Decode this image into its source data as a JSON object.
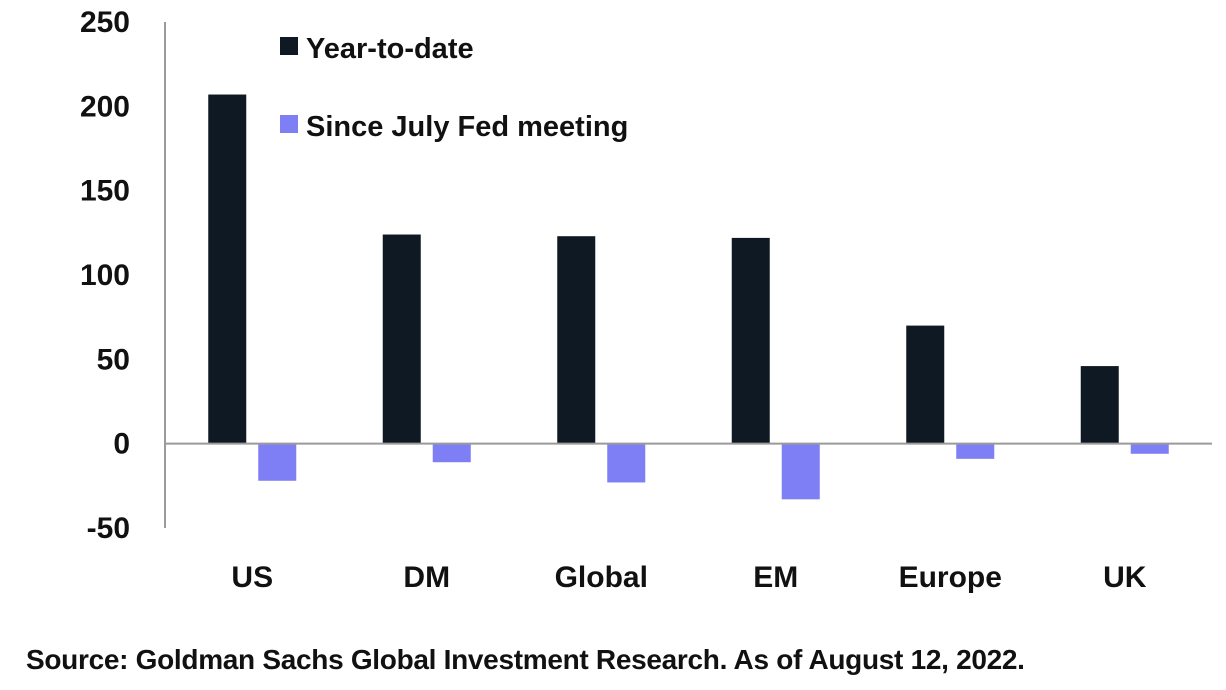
{
  "chart_data": {
    "type": "bar",
    "categories": [
      "US",
      "DM",
      "Global",
      "EM",
      "Europe",
      "UK"
    ],
    "series": [
      {
        "name": "Year-to-date",
        "color": "#0f1923",
        "values": [
          207,
          124,
          123,
          122,
          70,
          46
        ]
      },
      {
        "name": "Since July Fed meeting",
        "color": "#7f7ff5",
        "values": [
          -22,
          -11,
          -23,
          -33,
          -9,
          -6
        ]
      }
    ],
    "title": "",
    "xlabel": "",
    "ylabel": "",
    "ylim": [
      -50,
      250
    ],
    "yticks": [
      250,
      200,
      150,
      100,
      50,
      0,
      -50
    ],
    "grid": false,
    "legend": "top-left"
  },
  "source": "Source: Goldman Sachs Global Investment Research. As of August 12, 2022."
}
